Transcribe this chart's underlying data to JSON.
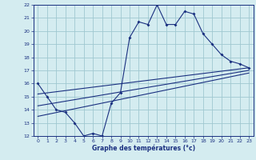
{
  "xlabel": "Graphe des températures (°c)",
  "xlim": [
    -0.5,
    23.5
  ],
  "ylim": [
    12,
    22
  ],
  "yticks": [
    12,
    13,
    14,
    15,
    16,
    17,
    18,
    19,
    20,
    21,
    22
  ],
  "xticks": [
    0,
    1,
    2,
    3,
    4,
    5,
    6,
    7,
    8,
    9,
    10,
    11,
    12,
    13,
    14,
    15,
    16,
    17,
    18,
    19,
    20,
    21,
    22,
    23
  ],
  "bg_color": "#d4ecf0",
  "line_color": "#1a3080",
  "grid_color": "#a0c8d0",
  "temp_x": [
    0,
    1,
    2,
    3,
    4,
    5,
    6,
    7,
    8,
    9,
    10,
    11,
    12,
    13,
    14,
    15,
    16,
    17,
    18,
    19,
    20,
    21,
    22,
    23
  ],
  "temp_y": [
    16.0,
    15.0,
    14.0,
    13.8,
    13.0,
    12.0,
    12.2,
    12.0,
    14.5,
    15.3,
    19.5,
    20.7,
    20.5,
    22.0,
    20.5,
    20.5,
    21.5,
    21.3,
    19.8,
    19.0,
    18.2,
    17.7,
    17.5,
    17.2
  ],
  "line1_x": [
    0,
    23
  ],
  "line1_y": [
    15.2,
    17.2
  ],
  "line2_x": [
    0,
    23
  ],
  "line2_y": [
    14.3,
    17.0
  ],
  "line3_x": [
    0,
    23
  ],
  "line3_y": [
    13.5,
    16.8
  ]
}
